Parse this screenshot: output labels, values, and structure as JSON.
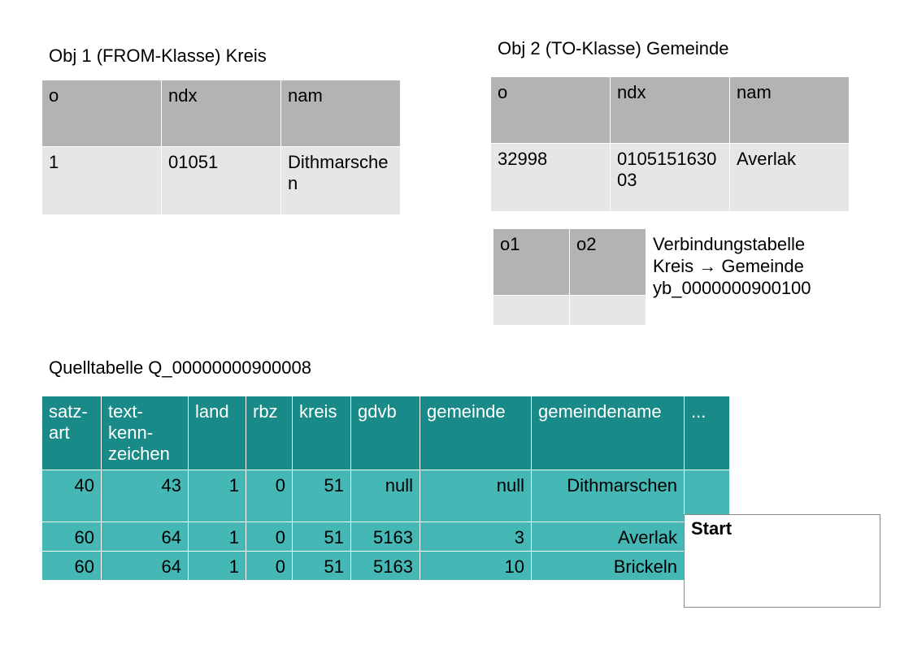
{
  "obj1": {
    "title": "Obj 1 (FROM-Klasse) Kreis",
    "headers": [
      "o",
      "ndx",
      "nam"
    ],
    "row": [
      "1",
      "01051",
      "Dithmarschen"
    ]
  },
  "obj2": {
    "title": "Obj 2 (TO-Klasse) Gemeinde",
    "headers": [
      "o",
      "ndx",
      "nam"
    ],
    "row": [
      "32998",
      "010515163003",
      "Averlak"
    ]
  },
  "link": {
    "headers": [
      "o1",
      "o2"
    ],
    "label_line1": "Verbindungstabelle",
    "label_line2": "Kreis → Gemeinde",
    "label_line3": "yb_0000000900100"
  },
  "source": {
    "title": "Quelltabelle Q_00000000900008",
    "headers": [
      "satz-art",
      "text-kenn-zeichen",
      "land",
      "rbz",
      "kreis",
      "gdvb",
      "gemeinde",
      "gemeindename",
      "..."
    ],
    "rows": [
      [
        "40",
        "43",
        "1",
        "0",
        "51",
        "null",
        "null",
        "Dithmarschen",
        ""
      ],
      [
        "60",
        "64",
        "1",
        "0",
        "51",
        "5163",
        "3",
        "Averlak"
      ],
      [
        "60",
        "64",
        "1",
        "0",
        "51",
        "5163",
        "10",
        "Brickeln"
      ]
    ]
  },
  "start_box": {
    "label": "Start"
  }
}
